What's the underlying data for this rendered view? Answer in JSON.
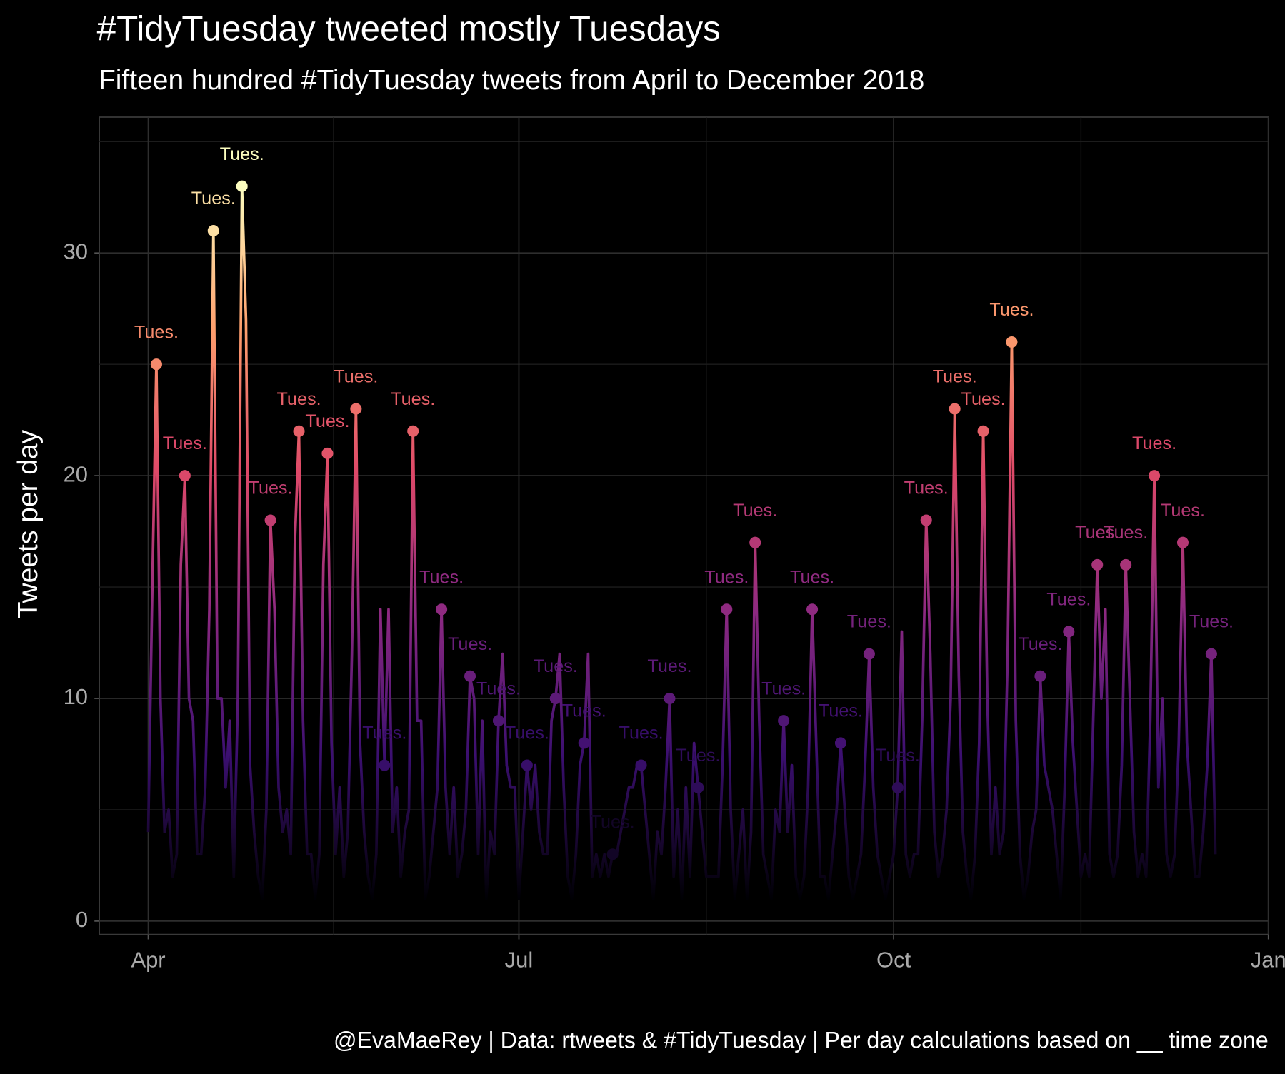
{
  "chart_data": {
    "type": "line",
    "title": "#TidyTuesday tweeted mostly Tuesdays",
    "subtitle": "Fifteen hundred #TidyTuesday tweets from April to December 2018",
    "y_label": "Tweets per day",
    "caption": "@EvaMaeRey | Data: rtweets & #TidyTuesday | Per day calculations based on __ time zone",
    "xlim": [
      -12,
      275
    ],
    "ylim": [
      -0.6,
      36.1
    ],
    "xticks": [
      {
        "value": 0,
        "label": "Apr"
      },
      {
        "value": 91,
        "label": "Jul"
      },
      {
        "value": 183,
        "label": "Oct"
      },
      {
        "value": 275,
        "label": "Jan"
      }
    ],
    "yticks": [
      0,
      10,
      20,
      30
    ],
    "xminor": [
      45.5,
      137,
      229
    ],
    "yminor": [
      5,
      15,
      25,
      35
    ],
    "grid": true,
    "colors": [
      "#000004",
      "#3b0f70",
      "#8c2981",
      "#de4968",
      "#fe9f6d",
      "#fcfdbf"
    ],
    "x": [
      0,
      1,
      2,
      3,
      4,
      5,
      6,
      7,
      8,
      9,
      10,
      11,
      12,
      13,
      14,
      15,
      16,
      17,
      18,
      19,
      20,
      21,
      22,
      23,
      24,
      25,
      26,
      27,
      28,
      29,
      30,
      31,
      32,
      33,
      34,
      35,
      36,
      37,
      38,
      39,
      40,
      41,
      42,
      43,
      44,
      45,
      46,
      47,
      48,
      49,
      50,
      51,
      52,
      53,
      54,
      55,
      56,
      57,
      58,
      59,
      60,
      61,
      62,
      63,
      64,
      65,
      66,
      67,
      68,
      69,
      70,
      71,
      72,
      73,
      74,
      75,
      76,
      77,
      78,
      79,
      80,
      81,
      82,
      83,
      84,
      85,
      86,
      87,
      88,
      89,
      90,
      91,
      92,
      93,
      94,
      95,
      96,
      97,
      98,
      99,
      100,
      101,
      102,
      103,
      104,
      105,
      106,
      107,
      108,
      109,
      110,
      111,
      112,
      113,
      114,
      115,
      116,
      117,
      118,
      119,
      120,
      121,
      122,
      123,
      124,
      125,
      126,
      127,
      128,
      129,
      130,
      131,
      132,
      133,
      134,
      135,
      136,
      137,
      138,
      139,
      140,
      141,
      142,
      143,
      144,
      145,
      146,
      147,
      148,
      149,
      150,
      151,
      152,
      153,
      154,
      155,
      156,
      157,
      158,
      159,
      160,
      161,
      162,
      163,
      164,
      165,
      166,
      167,
      168,
      169,
      170,
      171,
      172,
      173,
      174,
      175,
      176,
      177,
      178,
      179,
      180,
      181,
      182,
      183,
      184,
      185,
      186,
      187,
      188,
      189,
      190,
      191,
      192,
      193,
      194,
      195,
      196,
      197,
      198,
      199,
      200,
      201,
      202,
      203,
      204,
      205,
      206,
      207,
      208,
      209,
      210,
      211,
      212,
      213,
      214,
      215,
      216,
      217,
      218,
      219,
      220,
      221,
      222,
      223,
      224,
      225,
      226,
      227,
      228,
      229,
      230,
      231,
      232,
      233,
      234,
      235,
      236,
      237,
      238,
      239,
      240,
      241,
      242,
      243,
      244,
      245,
      246,
      247,
      248,
      249,
      250,
      251,
      252,
      253,
      254,
      255,
      256,
      257,
      258,
      259,
      260,
      261,
      262
    ],
    "values": [
      4,
      15,
      25,
      10,
      4,
      5,
      2,
      3,
      16,
      20,
      10,
      9,
      3,
      3,
      6,
      14,
      31,
      10,
      10,
      6,
      9,
      2,
      10,
      33,
      27,
      7,
      4,
      2,
      1,
      5,
      18,
      14,
      6,
      4,
      5,
      3,
      17,
      22,
      9,
      3,
      3,
      1,
      3,
      16,
      21,
      8,
      3,
      6,
      2,
      4,
      12,
      23,
      8,
      4,
      2,
      1,
      3,
      14,
      7,
      14,
      4,
      6,
      2,
      4,
      5,
      22,
      9,
      9,
      1,
      2,
      4,
      6,
      14,
      6,
      3,
      6,
      2,
      3,
      5,
      11,
      10,
      3,
      9,
      1,
      4,
      3,
      9,
      12,
      7,
      6,
      6,
      1,
      4,
      7,
      5,
      7,
      4,
      3,
      3,
      9,
      10,
      12,
      6,
      2,
      1,
      3,
      7,
      8,
      12,
      2,
      3,
      2,
      3,
      2,
      3,
      3,
      4,
      5,
      6,
      6,
      7,
      7,
      5,
      3,
      1,
      4,
      3,
      6,
      10,
      2,
      5,
      1,
      6,
      2,
      8,
      6,
      4,
      2,
      2,
      2,
      2,
      7,
      14,
      5,
      1,
      3,
      5,
      1,
      4,
      17,
      9,
      3,
      2,
      1,
      5,
      4,
      9,
      4,
      7,
      2,
      1,
      2,
      6,
      14,
      8,
      2,
      2,
      1,
      3,
      5,
      8,
      5,
      2,
      1,
      2,
      3,
      7,
      12,
      6,
      3,
      2,
      1,
      2,
      3,
      6,
      13,
      3,
      2,
      3,
      3,
      9,
      18,
      12,
      4,
      2,
      3,
      5,
      10,
      23,
      11,
      4,
      2,
      1,
      3,
      8,
      22,
      10,
      3,
      6,
      3,
      4,
      12,
      26,
      9,
      3,
      1,
      2,
      4,
      5,
      11,
      7,
      6,
      5,
      3,
      1,
      6,
      13,
      8,
      5,
      2,
      3,
      2,
      9,
      16,
      10,
      14,
      3,
      2,
      3,
      7,
      16,
      10,
      4,
      2,
      3,
      2,
      9,
      20,
      6,
      10,
      3,
      2,
      3,
      8,
      17,
      8,
      5,
      2,
      2,
      4,
      7,
      12,
      3
    ],
    "points": {
      "label": "Tues.",
      "x": [
        2,
        9,
        16,
        23,
        30,
        37,
        44,
        51,
        58,
        65,
        72,
        79,
        86,
        93,
        100,
        107,
        114,
        121,
        128,
        135,
        142,
        149,
        156,
        163,
        170,
        177,
        184,
        191,
        198,
        205,
        212,
        219,
        226,
        233,
        240,
        247,
        254,
        261
      ],
      "values": [
        25,
        20,
        31,
        33,
        18,
        22,
        21,
        23,
        7,
        22,
        14,
        11,
        9,
        7,
        10,
        8,
        3,
        7,
        10,
        6,
        14,
        17,
        9,
        14,
        8,
        12,
        6,
        18,
        23,
        22,
        26,
        11,
        13,
        16,
        16,
        20,
        17,
        12
      ]
    }
  }
}
